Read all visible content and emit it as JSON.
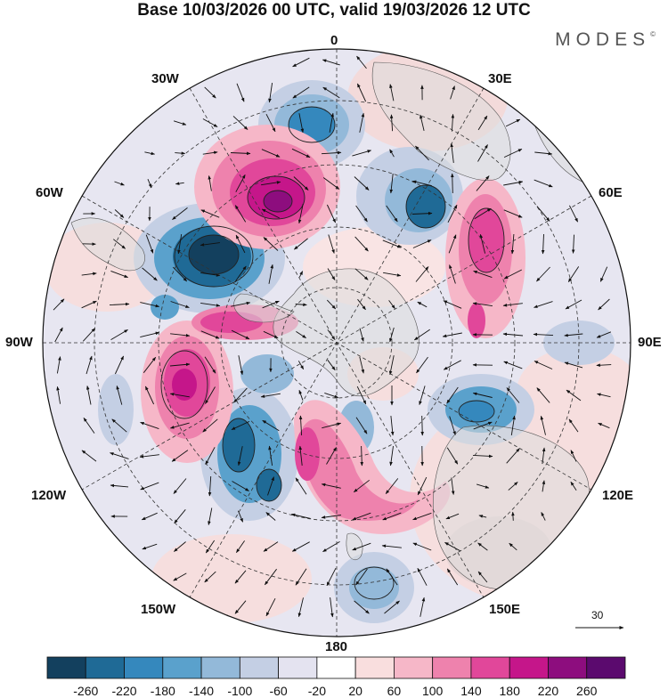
{
  "header": {
    "title": "Base 10/03/2026 00 UTC, valid 19/03/2026 12 UTC",
    "brand": "MODES",
    "brand_mark": "©"
  },
  "map": {
    "projection": "south-polar-stereographic",
    "longitude_labels": {
      "l0": "0",
      "l30e": "30E",
      "l60e": "60E",
      "l90e": "90E",
      "l120e": "120E",
      "l150e": "150E",
      "l180": "180",
      "l150w": "150W",
      "l120w": "120W",
      "l90w": "90W",
      "l60w": "60W",
      "l30w": "30W"
    },
    "vector_scale_label": "30"
  },
  "colorbar": {
    "labels": [
      "-260",
      "-220",
      "-180",
      "-140",
      "-100",
      "-60",
      "-20",
      "20",
      "60",
      "100",
      "140",
      "180",
      "220",
      "260"
    ],
    "colors": [
      "#13405e",
      "#1f6a96",
      "#3588bd",
      "#5aa1cc",
      "#93b9d9",
      "#c4cfe4",
      "#e4e3f0",
      "#ffffff",
      "#f9dede",
      "#f6b7c8",
      "#ee82ad",
      "#e1479a",
      "#c5168a",
      "#8d0d7e",
      "#5b0a6e"
    ]
  }
}
